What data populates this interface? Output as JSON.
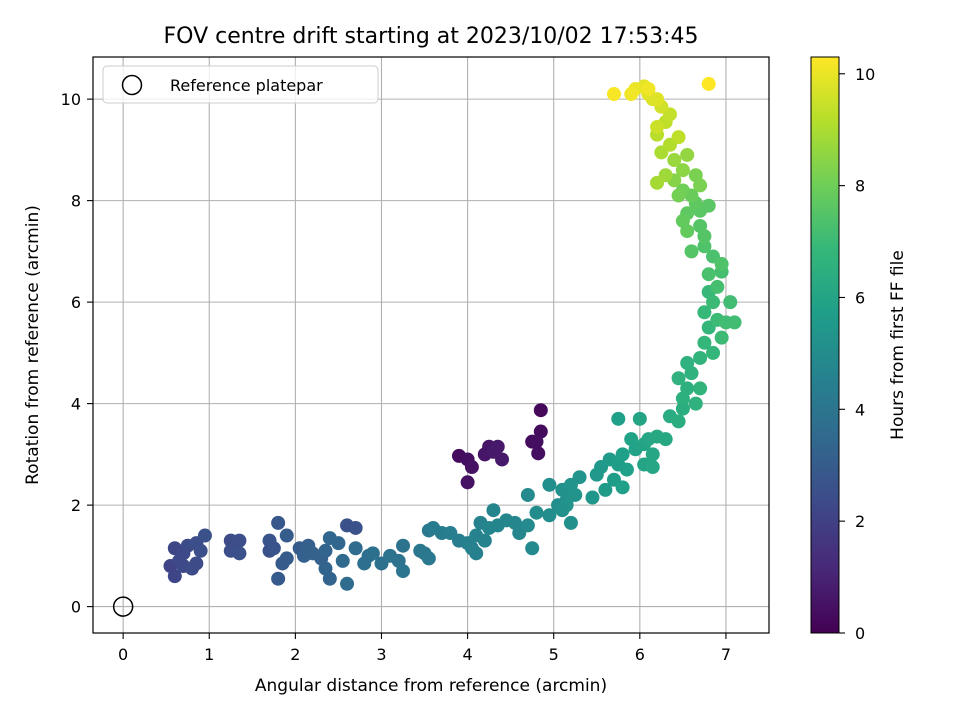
{
  "chart_data": {
    "type": "scatter",
    "title": "FOV centre drift starting at 2023/10/02 17:53:45",
    "xlabel": "Angular distance from reference (arcmin)",
    "ylabel": "Rotation from reference (arcmin)",
    "xlim": [
      -0.35,
      7.5
    ],
    "ylim": [
      -0.52,
      10.83
    ],
    "xticks": [
      0,
      1,
      2,
      3,
      4,
      5,
      6,
      7
    ],
    "yticks": [
      0,
      2,
      4,
      6,
      8,
      10
    ],
    "grid": true,
    "legend": {
      "position": "top-left",
      "entries": [
        "Reference platepar"
      ]
    },
    "reference_point": {
      "x": 0,
      "y": 0
    },
    "colorbar": {
      "label": "Hours from first FF file",
      "range": [
        0,
        10.3
      ],
      "ticks": [
        0,
        2,
        4,
        6,
        8,
        10
      ],
      "colormap": [
        "#440154",
        "#482878",
        "#3e4989",
        "#31688e",
        "#26828e",
        "#1f9e89",
        "#35b779",
        "#6ece58",
        "#b5de2b",
        "#fde725"
      ]
    },
    "points": [
      {
        "x": 3.9,
        "y": 2.97,
        "c": 0.3
      },
      {
        "x": 4.0,
        "y": 2.9,
        "c": 0.4
      },
      {
        "x": 4.05,
        "y": 2.75,
        "c": 0.5
      },
      {
        "x": 4.0,
        "y": 2.45,
        "c": 0.5
      },
      {
        "x": 4.2,
        "y": 3.0,
        "c": 0.6
      },
      {
        "x": 4.25,
        "y": 3.15,
        "c": 0.6
      },
      {
        "x": 4.35,
        "y": 3.15,
        "c": 0.7
      },
      {
        "x": 4.4,
        "y": 2.9,
        "c": 0.7
      },
      {
        "x": 4.3,
        "y": 3.05,
        "c": 0.7
      },
      {
        "x": 4.75,
        "y": 3.25,
        "c": 0.3
      },
      {
        "x": 4.85,
        "y": 3.45,
        "c": 0.3
      },
      {
        "x": 4.85,
        "y": 3.87,
        "c": 0.2
      },
      {
        "x": 4.82,
        "y": 3.02,
        "c": 0.4
      },
      {
        "x": 4.8,
        "y": 3.25,
        "c": 0.4
      },
      {
        "x": 0.55,
        "y": 0.8,
        "c": 2.1
      },
      {
        "x": 0.6,
        "y": 0.6,
        "c": 2.2
      },
      {
        "x": 0.6,
        "y": 1.15,
        "c": 2.2
      },
      {
        "x": 0.65,
        "y": 0.9,
        "c": 2.3
      },
      {
        "x": 0.7,
        "y": 0.8,
        "c": 2.3
      },
      {
        "x": 0.75,
        "y": 1.2,
        "c": 2.4
      },
      {
        "x": 0.8,
        "y": 0.75,
        "c": 2.4
      },
      {
        "x": 0.85,
        "y": 0.85,
        "c": 2.4
      },
      {
        "x": 0.85,
        "y": 1.25,
        "c": 2.5
      },
      {
        "x": 0.9,
        "y": 1.1,
        "c": 2.5
      },
      {
        "x": 0.95,
        "y": 1.4,
        "c": 2.6
      },
      {
        "x": 0.7,
        "y": 1.05,
        "c": 2.3
      },
      {
        "x": 1.25,
        "y": 1.3,
        "c": 2.4
      },
      {
        "x": 1.25,
        "y": 1.1,
        "c": 2.5
      },
      {
        "x": 1.35,
        "y": 1.3,
        "c": 2.5
      },
      {
        "x": 1.35,
        "y": 1.05,
        "c": 2.6
      },
      {
        "x": 1.7,
        "y": 1.1,
        "c": 2.6
      },
      {
        "x": 1.7,
        "y": 1.3,
        "c": 2.7
      },
      {
        "x": 1.75,
        "y": 1.15,
        "c": 2.7
      },
      {
        "x": 1.8,
        "y": 1.65,
        "c": 2.8
      },
      {
        "x": 1.8,
        "y": 0.55,
        "c": 2.9
      },
      {
        "x": 1.85,
        "y": 0.85,
        "c": 2.9
      },
      {
        "x": 1.9,
        "y": 0.95,
        "c": 3.0
      },
      {
        "x": 1.9,
        "y": 1.4,
        "c": 3.0
      },
      {
        "x": 2.05,
        "y": 1.15,
        "c": 3.0
      },
      {
        "x": 2.1,
        "y": 1.0,
        "c": 3.1
      },
      {
        "x": 2.15,
        "y": 1.2,
        "c": 3.1
      },
      {
        "x": 2.2,
        "y": 1.05,
        "c": 3.2
      },
      {
        "x": 2.3,
        "y": 0.95,
        "c": 3.2
      },
      {
        "x": 2.35,
        "y": 1.1,
        "c": 3.3
      },
      {
        "x": 2.35,
        "y": 0.75,
        "c": 3.3
      },
      {
        "x": 2.4,
        "y": 0.55,
        "c": 3.3
      },
      {
        "x": 2.4,
        "y": 1.35,
        "c": 3.4
      },
      {
        "x": 2.5,
        "y": 1.25,
        "c": 3.4
      },
      {
        "x": 2.55,
        "y": 0.9,
        "c": 3.5
      },
      {
        "x": 2.6,
        "y": 1.6,
        "c": 2.6
      },
      {
        "x": 2.7,
        "y": 1.55,
        "c": 2.6
      },
      {
        "x": 2.6,
        "y": 0.45,
        "c": 3.6
      },
      {
        "x": 2.7,
        "y": 1.15,
        "c": 3.6
      },
      {
        "x": 2.8,
        "y": 0.85,
        "c": 3.7
      },
      {
        "x": 2.85,
        "y": 1.0,
        "c": 3.7
      },
      {
        "x": 2.9,
        "y": 1.05,
        "c": 3.8
      },
      {
        "x": 3.0,
        "y": 0.85,
        "c": 3.8
      },
      {
        "x": 3.1,
        "y": 1.0,
        "c": 3.9
      },
      {
        "x": 3.2,
        "y": 0.9,
        "c": 3.9
      },
      {
        "x": 3.25,
        "y": 1.2,
        "c": 3.9
      },
      {
        "x": 3.25,
        "y": 0.7,
        "c": 4.0
      },
      {
        "x": 3.45,
        "y": 1.1,
        "c": 4.1
      },
      {
        "x": 3.5,
        "y": 1.05,
        "c": 4.1
      },
      {
        "x": 3.55,
        "y": 0.95,
        "c": 4.2
      },
      {
        "x": 3.55,
        "y": 1.5,
        "c": 4.2
      },
      {
        "x": 3.6,
        "y": 1.55,
        "c": 4.3
      },
      {
        "x": 3.7,
        "y": 1.45,
        "c": 4.3
      },
      {
        "x": 3.8,
        "y": 1.45,
        "c": 4.4
      },
      {
        "x": 3.9,
        "y": 1.3,
        "c": 4.4
      },
      {
        "x": 4.0,
        "y": 1.25,
        "c": 4.5
      },
      {
        "x": 4.05,
        "y": 1.15,
        "c": 4.5
      },
      {
        "x": 4.1,
        "y": 1.05,
        "c": 4.5
      },
      {
        "x": 4.1,
        "y": 1.4,
        "c": 4.6
      },
      {
        "x": 4.15,
        "y": 1.65,
        "c": 4.6
      },
      {
        "x": 4.2,
        "y": 1.3,
        "c": 4.6
      },
      {
        "x": 4.25,
        "y": 1.55,
        "c": 4.7
      },
      {
        "x": 4.3,
        "y": 1.9,
        "c": 4.7
      },
      {
        "x": 4.35,
        "y": 1.6,
        "c": 4.7
      },
      {
        "x": 4.45,
        "y": 1.7,
        "c": 4.8
      },
      {
        "x": 4.55,
        "y": 1.65,
        "c": 4.8
      },
      {
        "x": 4.6,
        "y": 1.45,
        "c": 4.8
      },
      {
        "x": 4.7,
        "y": 1.6,
        "c": 4.9
      },
      {
        "x": 4.7,
        "y": 2.2,
        "c": 4.9
      },
      {
        "x": 4.75,
        "y": 1.15,
        "c": 4.9
      },
      {
        "x": 4.8,
        "y": 1.85,
        "c": 5.0
      },
      {
        "x": 4.95,
        "y": 1.8,
        "c": 5.0
      },
      {
        "x": 4.95,
        "y": 2.4,
        "c": 5.1
      },
      {
        "x": 5.05,
        "y": 2.0,
        "c": 5.1
      },
      {
        "x": 5.1,
        "y": 2.3,
        "c": 5.2
      },
      {
        "x": 5.15,
        "y": 2.1,
        "c": 5.2
      },
      {
        "x": 5.2,
        "y": 1.65,
        "c": 5.2
      },
      {
        "x": 5.2,
        "y": 2.4,
        "c": 5.3
      },
      {
        "x": 5.25,
        "y": 2.2,
        "c": 5.3
      },
      {
        "x": 5.3,
        "y": 2.55,
        "c": 5.3
      },
      {
        "x": 5.15,
        "y": 2.0,
        "c": 5.3
      },
      {
        "x": 5.1,
        "y": 1.9,
        "c": 5.2
      },
      {
        "x": 5.45,
        "y": 2.15,
        "c": 5.4
      },
      {
        "x": 5.5,
        "y": 2.6,
        "c": 5.5
      },
      {
        "x": 5.55,
        "y": 2.75,
        "c": 5.5
      },
      {
        "x": 5.6,
        "y": 2.3,
        "c": 5.6
      },
      {
        "x": 5.65,
        "y": 2.9,
        "c": 5.6
      },
      {
        "x": 5.7,
        "y": 2.5,
        "c": 5.7
      },
      {
        "x": 5.75,
        "y": 2.8,
        "c": 5.7
      },
      {
        "x": 5.8,
        "y": 3.0,
        "c": 5.8
      },
      {
        "x": 5.75,
        "y": 3.7,
        "c": 5.8
      },
      {
        "x": 5.85,
        "y": 2.7,
        "c": 5.8
      },
      {
        "x": 5.9,
        "y": 3.3,
        "c": 5.9
      },
      {
        "x": 5.95,
        "y": 3.1,
        "c": 5.9
      },
      {
        "x": 6.0,
        "y": 3.7,
        "c": 6.0
      },
      {
        "x": 6.05,
        "y": 3.2,
        "c": 6.0
      },
      {
        "x": 6.05,
        "y": 2.8,
        "c": 6.0
      },
      {
        "x": 6.1,
        "y": 3.3,
        "c": 6.1
      },
      {
        "x": 6.15,
        "y": 3.0,
        "c": 6.1
      },
      {
        "x": 6.15,
        "y": 2.75,
        "c": 6.1
      },
      {
        "x": 6.2,
        "y": 3.35,
        "c": 6.2
      },
      {
        "x": 6.3,
        "y": 3.3,
        "c": 6.2
      },
      {
        "x": 5.8,
        "y": 2.35,
        "c": 5.8
      },
      {
        "x": 6.35,
        "y": 3.75,
        "c": 6.3
      },
      {
        "x": 6.45,
        "y": 3.65,
        "c": 6.4
      },
      {
        "x": 6.5,
        "y": 3.9,
        "c": 6.4
      },
      {
        "x": 6.5,
        "y": 4.1,
        "c": 6.5
      },
      {
        "x": 6.55,
        "y": 4.3,
        "c": 6.5
      },
      {
        "x": 6.45,
        "y": 4.5,
        "c": 6.6
      },
      {
        "x": 6.55,
        "y": 4.8,
        "c": 6.6
      },
      {
        "x": 6.6,
        "y": 4.6,
        "c": 6.6
      },
      {
        "x": 6.65,
        "y": 4.0,
        "c": 6.6
      },
      {
        "x": 6.7,
        "y": 4.3,
        "c": 6.7
      },
      {
        "x": 6.7,
        "y": 4.9,
        "c": 6.7
      },
      {
        "x": 6.75,
        "y": 5.2,
        "c": 6.8
      },
      {
        "x": 6.8,
        "y": 5.5,
        "c": 6.8
      },
      {
        "x": 6.85,
        "y": 5.0,
        "c": 6.8
      },
      {
        "x": 6.75,
        "y": 5.8,
        "c": 6.9
      },
      {
        "x": 6.8,
        "y": 6.2,
        "c": 6.9
      },
      {
        "x": 6.85,
        "y": 6.0,
        "c": 7.0
      },
      {
        "x": 6.9,
        "y": 5.65,
        "c": 7.0
      },
      {
        "x": 6.95,
        "y": 5.3,
        "c": 7.0
      },
      {
        "x": 7.0,
        "y": 5.6,
        "c": 7.1
      },
      {
        "x": 7.05,
        "y": 6.0,
        "c": 7.1
      },
      {
        "x": 7.1,
        "y": 5.6,
        "c": 7.1
      },
      {
        "x": 6.9,
        "y": 6.3,
        "c": 7.2
      },
      {
        "x": 6.95,
        "y": 6.6,
        "c": 7.2
      },
      {
        "x": 6.85,
        "y": 6.9,
        "c": 7.3
      },
      {
        "x": 6.8,
        "y": 6.55,
        "c": 7.3
      },
      {
        "x": 6.75,
        "y": 7.1,
        "c": 7.4
      },
      {
        "x": 6.95,
        "y": 6.75,
        "c": 7.4
      },
      {
        "x": 6.7,
        "y": 7.5,
        "c": 7.5
      },
      {
        "x": 6.75,
        "y": 7.3,
        "c": 7.5
      },
      {
        "x": 6.6,
        "y": 7.0,
        "c": 7.5
      },
      {
        "x": 6.7,
        "y": 7.8,
        "c": 7.6
      },
      {
        "x": 6.8,
        "y": 7.9,
        "c": 7.6
      },
      {
        "x": 6.65,
        "y": 7.95,
        "c": 7.7
      },
      {
        "x": 6.55,
        "y": 7.75,
        "c": 7.7
      },
      {
        "x": 6.5,
        "y": 7.6,
        "c": 7.8
      },
      {
        "x": 6.55,
        "y": 7.4,
        "c": 7.8
      },
      {
        "x": 6.6,
        "y": 8.1,
        "c": 7.9
      },
      {
        "x": 6.5,
        "y": 8.2,
        "c": 8.0
      },
      {
        "x": 6.45,
        "y": 8.1,
        "c": 8.1
      },
      {
        "x": 6.65,
        "y": 8.5,
        "c": 8.2
      },
      {
        "x": 6.7,
        "y": 8.3,
        "c": 8.2
      },
      {
        "x": 6.4,
        "y": 8.4,
        "c": 8.4
      },
      {
        "x": 6.5,
        "y": 8.6,
        "c": 8.5
      },
      {
        "x": 6.55,
        "y": 8.9,
        "c": 8.6
      },
      {
        "x": 6.4,
        "y": 8.8,
        "c": 8.7
      },
      {
        "x": 6.3,
        "y": 8.5,
        "c": 8.8
      },
      {
        "x": 6.2,
        "y": 8.35,
        "c": 8.9
      },
      {
        "x": 6.25,
        "y": 8.95,
        "c": 9.0
      },
      {
        "x": 6.35,
        "y": 9.1,
        "c": 9.1
      },
      {
        "x": 6.2,
        "y": 9.3,
        "c": 9.2
      },
      {
        "x": 6.3,
        "y": 9.55,
        "c": 9.3
      },
      {
        "x": 6.45,
        "y": 9.25,
        "c": 9.3
      },
      {
        "x": 6.35,
        "y": 9.7,
        "c": 9.4
      },
      {
        "x": 6.2,
        "y": 9.45,
        "c": 9.5
      },
      {
        "x": 6.25,
        "y": 9.85,
        "c": 9.6
      },
      {
        "x": 6.15,
        "y": 10.0,
        "c": 9.7
      },
      {
        "x": 6.1,
        "y": 10.1,
        "c": 9.8
      },
      {
        "x": 6.2,
        "y": 10.0,
        "c": 9.8
      },
      {
        "x": 6.05,
        "y": 10.25,
        "c": 9.9
      },
      {
        "x": 5.95,
        "y": 10.2,
        "c": 10.0
      },
      {
        "x": 5.9,
        "y": 10.1,
        "c": 10.1
      },
      {
        "x": 5.7,
        "y": 10.1,
        "c": 10.2
      },
      {
        "x": 6.1,
        "y": 10.2,
        "c": 10.1
      },
      {
        "x": 6.8,
        "y": 10.3,
        "c": 10.3
      }
    ]
  }
}
